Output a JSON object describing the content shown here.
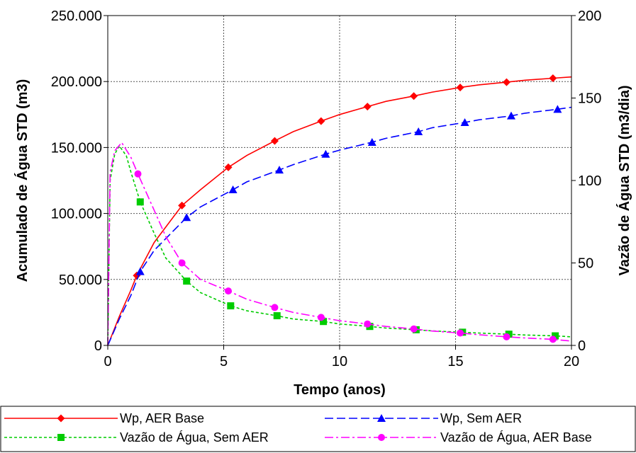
{
  "chart_data": {
    "type": "line",
    "xlabel": "Tempo (anos)",
    "ylabel_left": "Acumulado de Água STD (m3)",
    "ylabel_right": "Vazão de Água STD (m3/dia)",
    "xlim": [
      0,
      20
    ],
    "ylim_left": [
      0,
      250000
    ],
    "ylim_right": [
      0,
      200
    ],
    "x_ticks": [
      "0",
      "5",
      "10",
      "15",
      "20"
    ],
    "y_left_ticks": [
      "0",
      "50.000",
      "100.000",
      "150.000",
      "200.000",
      "250.000"
    ],
    "y_right_ticks": [
      "0",
      "50",
      "100",
      "150",
      "200"
    ],
    "grid": true,
    "legend_position": "bottom",
    "series": [
      {
        "name": "Wp, AER Base",
        "axis": "left",
        "color": "#ff0000",
        "line_style": "solid",
        "marker": "diamond",
        "x": [
          0,
          0.5,
          1.0,
          1.25,
          2.0,
          3.2,
          4.0,
          5.2,
          6.0,
          7.2,
          8.0,
          9.2,
          10.0,
          11.2,
          12.0,
          13.2,
          14.0,
          15.2,
          16.0,
          17.2,
          18.0,
          19.2,
          20.0
        ],
        "y": [
          0,
          22000,
          42000,
          53000,
          78000,
          106000,
          118000,
          135000,
          144000,
          155000,
          162000,
          170000,
          175000,
          181000,
          185000,
          189000,
          192000,
          195500,
          197500,
          199500,
          201000,
          202500,
          203500
        ],
        "marker_x": [
          1.25,
          3.2,
          5.2,
          7.2,
          9.2,
          11.2,
          13.2,
          15.2,
          17.2,
          19.2
        ]
      },
      {
        "name": "Wp, Sem AER",
        "axis": "left",
        "color": "#0000ff",
        "line_style": "dashed",
        "marker": "triangle",
        "x": [
          0,
          0.5,
          1.0,
          1.4,
          2.0,
          3.4,
          4.0,
          5.4,
          6.0,
          7.4,
          8.0,
          9.4,
          10.0,
          11.4,
          12.0,
          13.4,
          14.0,
          15.4,
          16.0,
          17.4,
          18.0,
          19.4,
          20.0
        ],
        "y": [
          0,
          20000,
          38000,
          56000,
          72000,
          97000,
          105000,
          118000,
          124000,
          133000,
          137000,
          145000,
          148000,
          154000,
          157000,
          162000,
          165000,
          169000,
          171000,
          174000,
          176000,
          179000,
          180500
        ],
        "marker_x": [
          1.4,
          3.4,
          5.4,
          7.4,
          9.4,
          11.4,
          13.4,
          15.4,
          17.4,
          19.4
        ]
      },
      {
        "name": "Vazão de Água, Sem AER",
        "axis": "right",
        "color": "#00cc00",
        "line_style": "dotted",
        "marker": "square",
        "x": [
          0,
          0.1,
          0.3,
          0.5,
          0.8,
          1.0,
          1.4,
          2.0,
          2.5,
          3.4,
          4.0,
          5.3,
          6.0,
          7.3,
          8.0,
          9.3,
          10.0,
          11.3,
          12.0,
          13.3,
          14.0,
          15.3,
          16.0,
          17.3,
          18.0,
          19.3,
          20.0
        ],
        "y": [
          0,
          100,
          116,
          121,
          115,
          105,
          87,
          68,
          53,
          39,
          32,
          24,
          21,
          18,
          16,
          14.5,
          13,
          11.5,
          10.5,
          9.5,
          8.8,
          8.0,
          7.5,
          6.8,
          6.3,
          5.8,
          5.2
        ],
        "marker_x": [
          1.4,
          3.4,
          5.3,
          7.3,
          9.3,
          11.3,
          13.3,
          15.3,
          17.3,
          19.3
        ]
      },
      {
        "name": "Vazão de Água, AER Base",
        "axis": "right",
        "color": "#ff00ff",
        "line_style": "dashdot",
        "marker": "circle",
        "x": [
          0,
          0.1,
          0.3,
          0.6,
          1.0,
          1.3,
          2.0,
          2.5,
          3.2,
          4.0,
          5.2,
          6.0,
          7.2,
          8.0,
          9.2,
          10.0,
          11.2,
          12.0,
          13.2,
          14.0,
          15.2,
          16.0,
          17.2,
          18.0,
          19.2,
          20.0
        ],
        "y": [
          0,
          105,
          118,
          123,
          114,
          104,
          82,
          66,
          50,
          40,
          33,
          28,
          23,
          20,
          17,
          15,
          13,
          11.5,
          10,
          8.7,
          7.5,
          6.5,
          5.2,
          4.5,
          3.7,
          2.6
        ],
        "marker_x": [
          1.3,
          3.2,
          5.2,
          7.2,
          9.2,
          11.2,
          13.2,
          15.2,
          17.2,
          19.2
        ]
      }
    ]
  }
}
